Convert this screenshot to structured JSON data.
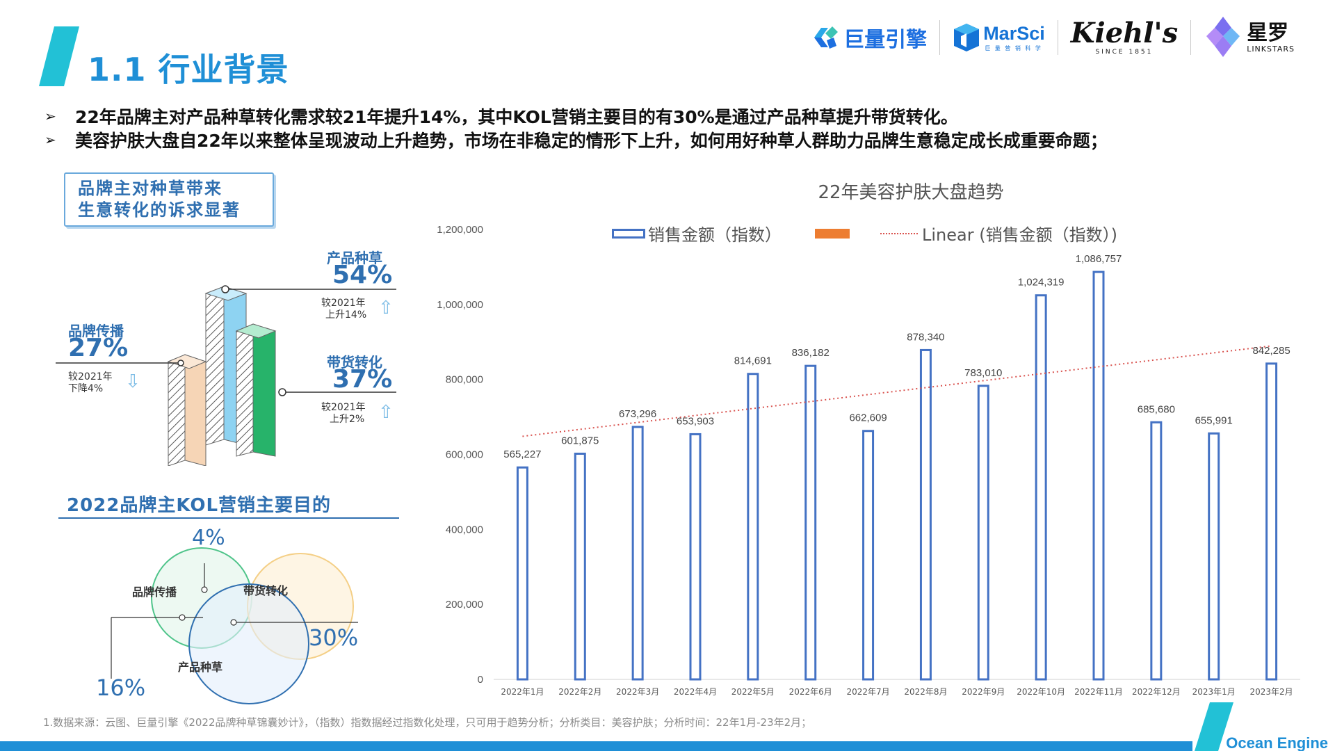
{
  "page": {
    "title": "1.1 行业背景",
    "bullets": [
      "22年品牌主对产品种草转化需求较21年提升14%，其中KOL营销主要目的有30%是通过产品种草提升带货转化。",
      "美容护肤大盘自22年以来整体呈现波动上升趋势，市场在非稳定的情形下上升，如何用好种草人群助力品牌生意稳定成长成重要命题；"
    ],
    "footnote": "1.数据来源：云图、巨量引擎《2022品牌种草锦囊妙计》，（指数）指数据经过指数化处理，只可用于趋势分析；分析类目：美容护肤；分析时间：22年1月-23年2月；",
    "brand_bottom": "Ocean Engine"
  },
  "logos": {
    "juliang": "巨量引擎",
    "marsci": "MarSci",
    "marsci_sub": "巨 量 营 销 科 学",
    "kiehls": "Kiehl's",
    "kiehls_since": "SINCE 1851",
    "xingtu": "星罗",
    "xingtu_en": "LINKSTARS"
  },
  "infographic": {
    "card_lines": [
      "品牌主对种草带来",
      "生意转化的诉求显著"
    ],
    "items": [
      {
        "label": "产品种草",
        "value": "54%",
        "note1": "较2021年",
        "note2": "上升14%",
        "direction": "up"
      },
      {
        "label": "品牌传播",
        "value": "27%",
        "note1": "较2021年",
        "note2": "下降4%",
        "direction": "down"
      },
      {
        "label": "带货转化",
        "value": "37%",
        "note1": "较2021年",
        "note2": "上升2%",
        "direction": "up"
      }
    ],
    "venn_title": "2022品牌主KOL营销主要目的",
    "venn": {
      "circle_a": "品牌传播",
      "circle_b": "带货转化",
      "circle_c": "产品种草",
      "pct_top": "4%",
      "pct_right": "30%",
      "pct_left": "16%"
    },
    "colors": {
      "blue": "#2f6fb0",
      "green": "#27b36a",
      "peach": "#f4c89c",
      "sky": "#7cc7ef"
    }
  },
  "chart_data": {
    "type": "bar",
    "title": "22年美容护肤大盘趋势",
    "categories": [
      "2022年1月",
      "2022年2月",
      "2022年3月",
      "2022年4月",
      "2022年5月",
      "2022年6月",
      "2022年7月",
      "2022年8月",
      "2022年9月",
      "2022年10月",
      "2022年11月",
      "2022年12月",
      "2023年1月",
      "2023年2月"
    ],
    "series": [
      {
        "name": "销售金额（指数）",
        "values": [
          565227,
          601875,
          673296,
          653903,
          814691,
          836182,
          662609,
          878340,
          783010,
          1024319,
          1086757,
          685680,
          655991,
          842285
        ],
        "color": "#4472c4"
      }
    ],
    "trendline": {
      "name": "Linear (销售金额（指数）)",
      "color": "#d9534f",
      "style": "dotted"
    },
    "legend_extra_swatch": "#ed7d31",
    "data_labels": [
      "565,227",
      "601,875",
      "673,296",
      "653,903",
      "814,691",
      "836,182",
      "662,609",
      "878,340",
      "783,010",
      "1,024,319",
      "1,086,757",
      "685,680",
      "655,991",
      "842,285"
    ],
    "ylim": [
      0,
      1200000
    ],
    "yticks": [
      0,
      200000,
      400000,
      600000,
      800000,
      1000000,
      1200000
    ],
    "ytick_labels": [
      "0",
      "200,000",
      "400,000",
      "600,000",
      "800,000",
      "1,000,000",
      "1,200,000"
    ],
    "grid": false,
    "legend_position": "top"
  }
}
